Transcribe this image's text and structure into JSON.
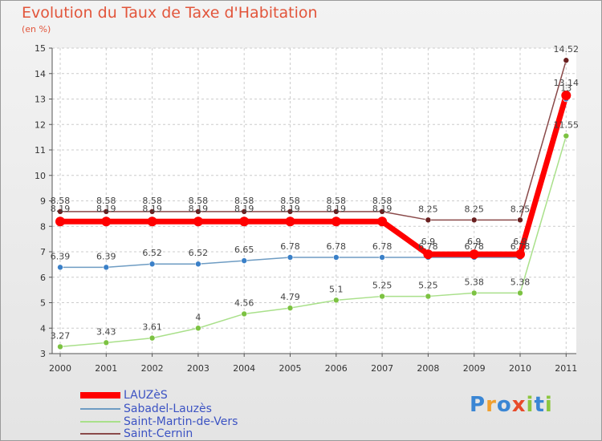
{
  "header": {
    "title": "Evolution du Taux de Taxe d'Habitation",
    "subtitle": "(en %)"
  },
  "brand": {
    "letters": [
      "P",
      "r",
      "o",
      "x",
      "i",
      "t",
      "i"
    ],
    "colors": [
      "#3a86d4",
      "#f0a030",
      "#3a86d4",
      "#e84a2a",
      "#8cc63e",
      "#3a86d4",
      "#8cc63e"
    ]
  },
  "chart_data": {
    "type": "line",
    "title": "Evolution du Taux de Taxe d'Habitation",
    "subtitle": "(en %)",
    "x": [
      "2000",
      "2001",
      "2002",
      "2003",
      "2004",
      "2005",
      "2006",
      "2007",
      "2008",
      "2009",
      "2010",
      "2011"
    ],
    "ylim": [
      3,
      15
    ],
    "yticks": [
      3,
      4,
      5,
      6,
      7,
      8,
      9,
      10,
      11,
      12,
      13,
      14,
      15
    ],
    "grid": true,
    "legend_position": "bottom-left",
    "series": [
      {
        "name": "LAUZèS",
        "color": "#ff0000",
        "point_color": "#ff0000",
        "width": 7,
        "values": [
          8.19,
          8.19,
          8.19,
          8.19,
          8.19,
          8.19,
          8.19,
          8.19,
          6.9,
          6.9,
          6.9,
          13.14
        ],
        "labels": [
          "8.19",
          "8.19",
          "8.19",
          "8.19",
          "8.19",
          "8.19",
          "8.19",
          "8.19",
          "6.9",
          "6.9",
          "6.9",
          "13.14"
        ]
      },
      {
        "name": "Sabadel-Lauzès",
        "color": "#6e9cc3",
        "point_color": "#3a80c8",
        "width": 1.5,
        "values": [
          6.39,
          6.39,
          6.52,
          6.52,
          6.65,
          6.78,
          6.78,
          6.78,
          6.78,
          6.78,
          6.78,
          13
        ],
        "labels": [
          "6.39",
          "6.39",
          "6.52",
          "6.52",
          "6.65",
          "6.78",
          "6.78",
          "6.78",
          "6.78",
          "6.78",
          "6.78",
          "13"
        ]
      },
      {
        "name": "Saint-Martin-de-Vers",
        "color": "#a9e08a",
        "point_color": "#7cc242",
        "width": 1.5,
        "values": [
          3.27,
          3.43,
          3.61,
          4,
          4.56,
          4.79,
          5.1,
          5.25,
          5.25,
          5.38,
          5.38,
          11.55
        ],
        "labels": [
          "3.27",
          "3.43",
          "3.61",
          "4",
          "4.56",
          "4.79",
          "5.1",
          "5.25",
          "5.25",
          "5.38",
          "5.38",
          "11.55"
        ]
      },
      {
        "name": "Saint-Cernin",
        "color": "#8a4a4a",
        "point_color": "#6a1f1f",
        "width": 1.5,
        "values": [
          8.58,
          8.58,
          8.58,
          8.58,
          8.58,
          8.58,
          8.58,
          8.58,
          8.25,
          8.25,
          8.25,
          14.52
        ],
        "labels": [
          "8.58",
          "8.58",
          "8.58",
          "8.58",
          "8.58",
          "8.58",
          "8.58",
          "8.58",
          "8.25",
          "8.25",
          "8.25",
          "14.52"
        ]
      }
    ]
  },
  "legend": {
    "items": [
      {
        "label": "LAUZèS",
        "color": "#ff0000"
      },
      {
        "label": "Sabadel-Lauzès",
        "color": "#6e9cc3"
      },
      {
        "label": "Saint-Martin-de-Vers",
        "color": "#a9e08a"
      },
      {
        "label": "Saint-Cernin",
        "color": "#8a4a4a"
      }
    ]
  }
}
